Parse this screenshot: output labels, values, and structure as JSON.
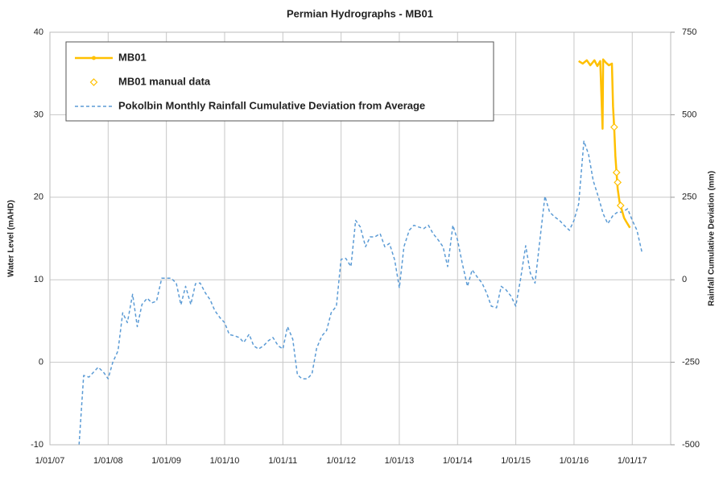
{
  "chart_data": {
    "type": "line",
    "title": "Permian Hydrographs - MB01",
    "y_label": "Water Level (mAHD)",
    "y2_label": "Rainfall Cumulative Deviation (mm)",
    "xlim": [
      2007,
      2017.66
    ],
    "xticks": [
      {
        "value": 2007,
        "label": "1/01/07"
      },
      {
        "value": 2008,
        "label": "1/01/08"
      },
      {
        "value": 2009,
        "label": "1/01/09"
      },
      {
        "value": 2010,
        "label": "1/01/10"
      },
      {
        "value": 2011,
        "label": "1/01/11"
      },
      {
        "value": 2012,
        "label": "1/01/12"
      },
      {
        "value": 2013,
        "label": "1/01/13"
      },
      {
        "value": 2014,
        "label": "1/01/14"
      },
      {
        "value": 2015,
        "label": "1/01/15"
      },
      {
        "value": 2016,
        "label": "1/01/16"
      },
      {
        "value": 2017,
        "label": "1/01/17"
      }
    ],
    "ylim": [
      -10,
      40
    ],
    "yticks": [
      -10,
      0,
      10,
      20,
      30,
      40
    ],
    "y2lim": [
      -500,
      750
    ],
    "y2ticks": [
      -500,
      -250,
      0,
      250,
      500,
      750
    ],
    "grid": true,
    "legend": "upper left",
    "series": [
      {
        "name": "MB01",
        "color": "#ffc000",
        "axis": "y",
        "style": "solid",
        "x": [
          2016.08,
          2016.15,
          2016.22,
          2016.28,
          2016.35,
          2016.4,
          2016.45,
          2016.49,
          2016.5,
          2016.55,
          2016.6,
          2016.65,
          2016.67,
          2016.69,
          2016.71,
          2016.73,
          2016.75,
          2016.78,
          2016.82,
          2016.86,
          2016.9,
          2016.96
        ],
        "values": [
          36.5,
          36.2,
          36.6,
          36.0,
          36.6,
          35.9,
          36.5,
          28.3,
          36.7,
          36.3,
          36.0,
          36.2,
          31,
          28.5,
          25,
          23,
          21,
          19.5,
          18.5,
          17.5,
          17,
          16.3
        ]
      },
      {
        "name": "MB01  manual data",
        "color": "#ffc000",
        "axis": "y",
        "style": "diamond",
        "x": [
          2016.69,
          2016.73,
          2016.75,
          2016.8
        ],
        "values": [
          28.5,
          23,
          21.8,
          19
        ]
      },
      {
        "name": "Pokolbin Monthly Rainfall Cumulative Deviation from Average",
        "color": "#5b9bd5",
        "axis": "y2",
        "style": "dashed",
        "x": [
          2007.5,
          2007.58,
          2007.67,
          2007.83,
          2007.92,
          2008.0,
          2008.08,
          2008.17,
          2008.25,
          2008.33,
          2008.42,
          2008.5,
          2008.58,
          2008.67,
          2008.75,
          2008.83,
          2008.92,
          2009.0,
          2009.08,
          2009.17,
          2009.25,
          2009.33,
          2009.42,
          2009.5,
          2009.58,
          2009.67,
          2009.75,
          2009.83,
          2009.92,
          2010.0,
          2010.08,
          2010.17,
          2010.25,
          2010.33,
          2010.42,
          2010.5,
          2010.58,
          2010.67,
          2010.75,
          2010.83,
          2010.92,
          2011.0,
          2011.08,
          2011.17,
          2011.25,
          2011.33,
          2011.42,
          2011.5,
          2011.58,
          2011.67,
          2011.75,
          2011.83,
          2011.92,
          2012.0,
          2012.08,
          2012.17,
          2012.25,
          2012.33,
          2012.42,
          2012.5,
          2012.58,
          2012.67,
          2012.75,
          2012.83,
          2012.92,
          2013.0,
          2013.08,
          2013.17,
          2013.25,
          2013.33,
          2013.42,
          2013.5,
          2013.58,
          2013.67,
          2013.75,
          2013.83,
          2013.92,
          2014.0,
          2014.08,
          2014.17,
          2014.25,
          2014.33,
          2014.42,
          2014.5,
          2014.58,
          2014.67,
          2014.75,
          2014.83,
          2014.92,
          2015.0,
          2015.08,
          2015.17,
          2015.25,
          2015.33,
          2015.42,
          2015.5,
          2015.58,
          2015.67,
          2015.75,
          2015.83,
          2015.92,
          2016.0,
          2016.08,
          2016.17,
          2016.25,
          2016.33,
          2016.42,
          2016.5,
          2016.58,
          2016.67,
          2016.75,
          2016.83,
          2016.92,
          2017.0,
          2017.08,
          2017.17
        ],
        "values": [
          -500,
          -290,
          -295,
          -265,
          -280,
          -300,
          -250,
          -215,
          -100,
          -130,
          -44,
          -142,
          -75,
          -56,
          -70,
          -65,
          5,
          5,
          5,
          -10,
          -76,
          -20,
          -75,
          -12,
          -10,
          -40,
          -60,
          -93,
          -115,
          -130,
          -166,
          -170,
          -175,
          -190,
          -165,
          -200,
          -210,
          -200,
          -185,
          -175,
          -200,
          -210,
          -142,
          -180,
          -288,
          -300,
          -300,
          -285,
          -207,
          -170,
          -154,
          -100,
          -80,
          62,
          65,
          40,
          180,
          160,
          100,
          130,
          130,
          140,
          100,
          110,
          60,
          -25,
          100,
          150,
          165,
          160,
          155,
          165,
          140,
          120,
          100,
          40,
          165,
          120,
          50,
          -20,
          30,
          10,
          -10,
          -40,
          -80,
          -85,
          -20,
          -30,
          -50,
          -80,
          0,
          103,
          20,
          -10,
          130,
          253,
          205,
          190,
          180,
          165,
          150,
          180,
          230,
          420,
          380,
          300,
          250,
          200,
          170,
          195,
          205,
          205,
          215,
          180,
          150,
          80
        ]
      }
    ]
  }
}
